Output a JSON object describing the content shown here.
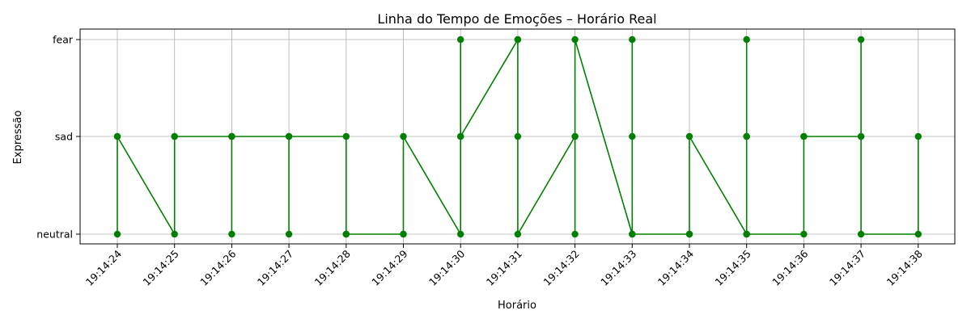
{
  "chart_data": {
    "type": "line",
    "title": "Linha do Tempo de Emoções – Horário Real",
    "xlabel": "Horário",
    "ylabel": "Expressão",
    "x_ticks": [
      "19:14:24",
      "19:14:25",
      "19:14:26",
      "19:14:27",
      "19:14:28",
      "19:14:29",
      "19:14:30",
      "19:14:31",
      "19:14:32",
      "19:14:33",
      "19:14:34",
      "19:14:35",
      "19:14:36",
      "19:14:37",
      "19:14:38"
    ],
    "y_categories": [
      "neutral",
      "sad",
      "fear"
    ],
    "grid": true,
    "series": [
      {
        "color": "#008000",
        "marker": "circle",
        "points": [
          {
            "x": "19:14:24.0",
            "y": "neutral"
          },
          {
            "x": "19:14:24.0",
            "y": "sad"
          },
          {
            "x": "19:14:24.0",
            "y": "sad"
          },
          {
            "x": "19:14:25.0",
            "y": "neutral"
          },
          {
            "x": "19:14:25.0",
            "y": "sad"
          },
          {
            "x": "19:14:25.0",
            "y": "sad"
          },
          {
            "x": "19:14:26.0",
            "y": "sad"
          },
          {
            "x": "19:14:26.0",
            "y": "sad"
          },
          {
            "x": "19:14:26.0",
            "y": "neutral"
          },
          {
            "x": "19:14:26.0",
            "y": "sad"
          },
          {
            "x": "19:14:27.0",
            "y": "sad"
          },
          {
            "x": "19:14:27.0",
            "y": "neutral"
          },
          {
            "x": "19:14:27.0",
            "y": "sad"
          },
          {
            "x": "19:14:28.0",
            "y": "sad"
          },
          {
            "x": "19:14:28.0",
            "y": "neutral"
          },
          {
            "x": "19:14:28.0",
            "y": "neutral"
          },
          {
            "x": "19:14:29.0",
            "y": "neutral"
          },
          {
            "x": "19:14:29.0",
            "y": "neutral"
          },
          {
            "x": "19:14:29.0",
            "y": "sad"
          },
          {
            "x": "19:14:30.0",
            "y": "neutral"
          },
          {
            "x": "19:14:30.0",
            "y": "sad"
          },
          {
            "x": "19:14:30.0",
            "y": "fear"
          },
          {
            "x": "19:14:30.0",
            "y": "sad"
          },
          {
            "x": "19:14:31.0",
            "y": "fear"
          },
          {
            "x": "19:14:31.0",
            "y": "fear"
          },
          {
            "x": "19:14:31.0",
            "y": "sad"
          },
          {
            "x": "19:14:31.0",
            "y": "neutral"
          },
          {
            "x": "19:14:32.0",
            "y": "sad"
          },
          {
            "x": "19:14:32.0",
            "y": "sad"
          },
          {
            "x": "19:14:32.0",
            "y": "neutral"
          },
          {
            "x": "19:14:32.0",
            "y": "fear"
          },
          {
            "x": "19:14:33.0",
            "y": "neutral"
          },
          {
            "x": "19:14:33.0",
            "y": "fear"
          },
          {
            "x": "19:14:33.0",
            "y": "sad"
          },
          {
            "x": "19:14:33.0",
            "y": "neutral"
          },
          {
            "x": "19:14:34.0",
            "y": "neutral"
          },
          {
            "x": "19:14:34.0",
            "y": "neutral"
          },
          {
            "x": "19:14:34.0",
            "y": "sad"
          },
          {
            "x": "19:14:35.0",
            "y": "neutral"
          },
          {
            "x": "19:14:35.0",
            "y": "fear"
          },
          {
            "x": "19:14:35.0",
            "y": "sad"
          },
          {
            "x": "19:14:35.0",
            "y": "sad"
          },
          {
            "x": "19:14:35.0",
            "y": "neutral"
          },
          {
            "x": "19:14:36.0",
            "y": "neutral"
          },
          {
            "x": "19:14:36.0",
            "y": "sad"
          },
          {
            "x": "19:14:36.0",
            "y": "sad"
          },
          {
            "x": "19:14:37.0",
            "y": "sad"
          },
          {
            "x": "19:14:37.0",
            "y": "fear"
          },
          {
            "x": "19:14:37.0",
            "y": "sad"
          },
          {
            "x": "19:14:37.0",
            "y": "neutral"
          },
          {
            "x": "19:14:38.0",
            "y": "neutral"
          },
          {
            "x": "19:14:38.0",
            "y": "sad"
          }
        ]
      }
    ]
  }
}
